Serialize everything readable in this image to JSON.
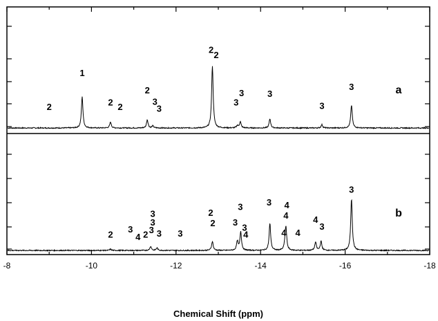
{
  "chart_data": {
    "type": "line",
    "xlabel": "Chemical Shift (ppm)",
    "xlim": [
      -8,
      -18
    ],
    "x_reversed": true,
    "x_ticks": [
      "-8",
      "-10",
      "-12",
      "-14",
      "-16",
      "-18"
    ],
    "y_ticks_labeled": false,
    "grid": false,
    "panels": [
      {
        "name": "a",
        "peaks": [
          {
            "x": -9.78,
            "h": 0.75
          },
          {
            "x": -10.45,
            "h": 0.14
          },
          {
            "x": -11.32,
            "h": 0.2
          },
          {
            "x": -11.45,
            "h": 0.05
          },
          {
            "x": -12.86,
            "h": 1.5
          },
          {
            "x": -13.45,
            "h": 0.06
          },
          {
            "x": -13.52,
            "h": 0.15
          },
          {
            "x": -14.22,
            "h": 0.22
          },
          {
            "x": -15.45,
            "h": 0.08
          },
          {
            "x": -16.15,
            "h": 0.55
          }
        ],
        "labels": [
          {
            "x": -9.0,
            "level": 1.05,
            "text": "2"
          },
          {
            "x": -9.78,
            "level": 3.0,
            "text": "1"
          },
          {
            "x": -10.45,
            "level": 1.3,
            "text": "2"
          },
          {
            "x": -10.68,
            "level": 1.05,
            "text": "2"
          },
          {
            "x": -11.32,
            "level": 2.0,
            "text": "2"
          },
          {
            "x": -11.5,
            "level": 1.35,
            "text": "3"
          },
          {
            "x": -11.6,
            "level": 0.95,
            "text": "3"
          },
          {
            "x": -12.83,
            "level": 4.35,
            "text": "2"
          },
          {
            "x": -12.95,
            "level": 4.05,
            "text": "2"
          },
          {
            "x": -13.42,
            "level": 1.3,
            "text": "3"
          },
          {
            "x": -13.55,
            "level": 1.85,
            "text": "3"
          },
          {
            "x": -14.22,
            "level": 1.8,
            "text": "3"
          },
          {
            "x": -15.45,
            "level": 1.1,
            "text": "3"
          },
          {
            "x": -16.15,
            "level": 2.2,
            "text": "3"
          }
        ]
      },
      {
        "name": "b",
        "peaks": [
          {
            "x": -10.45,
            "h": 0.03
          },
          {
            "x": -11.4,
            "h": 0.1
          },
          {
            "x": -11.55,
            "h": 0.06
          },
          {
            "x": -12.86,
            "h": 0.22
          },
          {
            "x": -13.45,
            "h": 0.22
          },
          {
            "x": -13.53,
            "h": 0.45
          },
          {
            "x": -14.22,
            "h": 0.65
          },
          {
            "x": -14.6,
            "h": 0.5
          },
          {
            "x": -14.58,
            "h": 0.15
          },
          {
            "x": -15.3,
            "h": 0.2
          },
          {
            "x": -15.43,
            "h": 0.22
          },
          {
            "x": -16.15,
            "h": 1.25
          }
        ],
        "labels": [
          {
            "x": -10.45,
            "level": 0.75,
            "text": "2"
          },
          {
            "x": -10.92,
            "level": 1.05,
            "text": "3"
          },
          {
            "x": -11.1,
            "level": 0.6,
            "text": "4"
          },
          {
            "x": -11.28,
            "level": 0.75,
            "text": "2"
          },
          {
            "x": -11.45,
            "level": 1.95,
            "text": "3"
          },
          {
            "x": -11.45,
            "level": 1.45,
            "text": "3"
          },
          {
            "x": -11.42,
            "level": 1.0,
            "text": "3"
          },
          {
            "x": -11.6,
            "level": 0.8,
            "text": "3"
          },
          {
            "x": -12.1,
            "level": 0.8,
            "text": "3"
          },
          {
            "x": -12.82,
            "level": 2.0,
            "text": "2"
          },
          {
            "x": -12.87,
            "level": 1.4,
            "text": "2"
          },
          {
            "x": -13.4,
            "level": 1.45,
            "text": "3"
          },
          {
            "x": -13.52,
            "level": 2.35,
            "text": "3"
          },
          {
            "x": -13.62,
            "level": 1.15,
            "text": "3"
          },
          {
            "x": -13.65,
            "level": 0.75,
            "text": "4"
          },
          {
            "x": -14.2,
            "level": 2.6,
            "text": "3"
          },
          {
            "x": -14.55,
            "level": 0.85,
            "text": "4"
          },
          {
            "x": -14.62,
            "level": 2.45,
            "text": "4"
          },
          {
            "x": -14.6,
            "level": 1.85,
            "text": "4"
          },
          {
            "x": -14.88,
            "level": 0.85,
            "text": "4"
          },
          {
            "x": -15.3,
            "level": 1.6,
            "text": "4"
          },
          {
            "x": -15.45,
            "level": 1.2,
            "text": "3"
          },
          {
            "x": -16.15,
            "level": 3.35,
            "text": "3"
          }
        ]
      }
    ]
  }
}
